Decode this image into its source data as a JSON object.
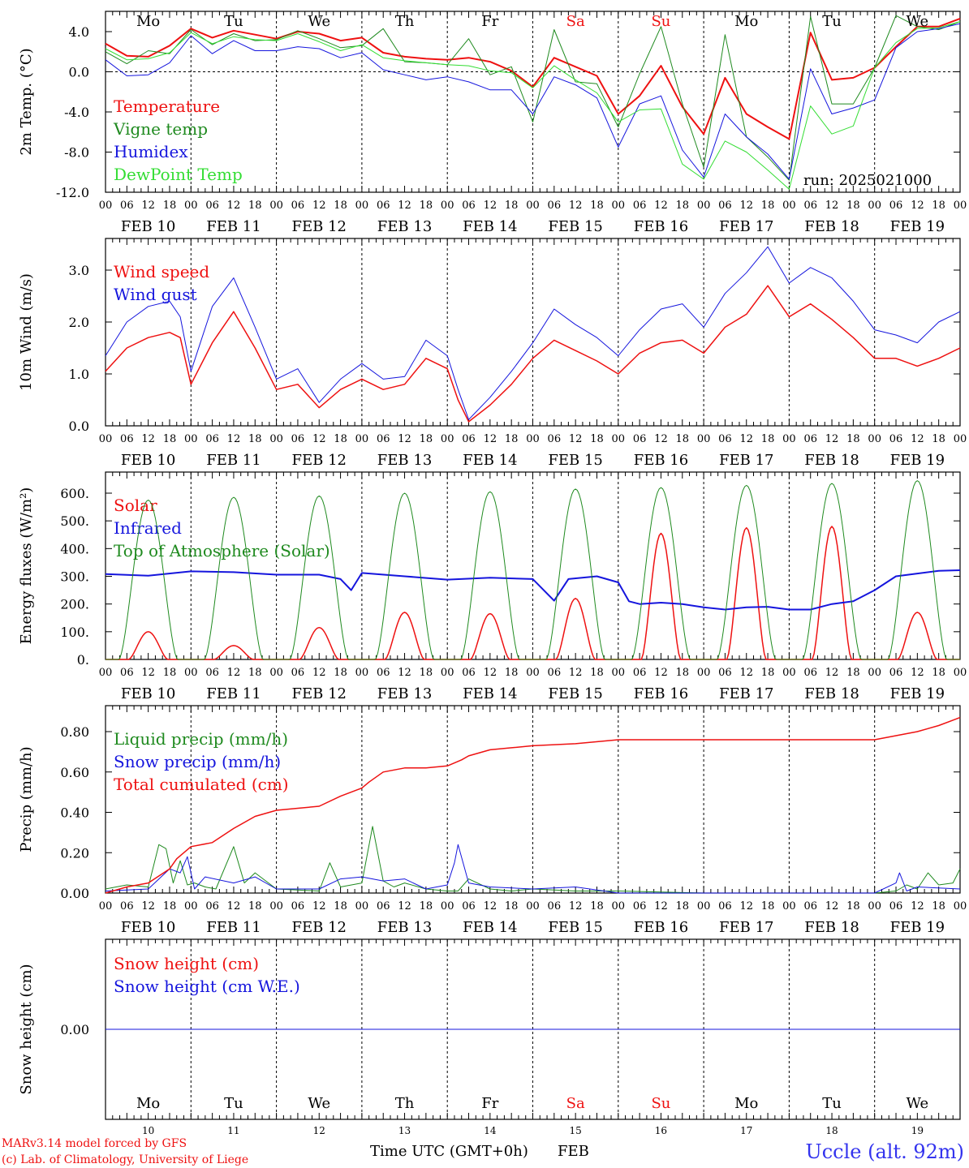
{
  "colors": {
    "red": "#ee1111",
    "dark_green": "#1f8a1f",
    "light_green": "#33dd33",
    "blue": "#1515dd",
    "black": "#000000",
    "station_blue": "#3333ee"
  },
  "days": [
    {
      "abbr": "Mo",
      "color": "black",
      "date": "FEB 10",
      "num": "10"
    },
    {
      "abbr": "Tu",
      "color": "black",
      "date": "FEB 11",
      "num": "11"
    },
    {
      "abbr": "We",
      "color": "black",
      "date": "FEB 12",
      "num": "12"
    },
    {
      "abbr": "Th",
      "color": "black",
      "date": "FEB 13",
      "num": "13"
    },
    {
      "abbr": "Fr",
      "color": "black",
      "date": "FEB 14",
      "num": "14"
    },
    {
      "abbr": "Sa",
      "color": "red",
      "date": "FEB 15",
      "num": "15"
    },
    {
      "abbr": "Su",
      "color": "red",
      "date": "FEB 16",
      "num": "16"
    },
    {
      "abbr": "Mo",
      "color": "black",
      "date": "FEB 17",
      "num": "17"
    },
    {
      "abbr": "Tu",
      "color": "black",
      "date": "FEB 18",
      "num": "18"
    },
    {
      "abbr": "We",
      "color": "black",
      "date": "FEB 19",
      "num": "19"
    }
  ],
  "hour_ticks": [
    "00",
    "06",
    "12",
    "18"
  ],
  "footer": {
    "model": "MARv3.14 model forced by GFS",
    "credit": "(c) Lab. of Climatology, University of Liege",
    "xlabel": "Time UTC (GMT+0h)",
    "month": "FEB",
    "station": "Uccle (alt. 92m)"
  },
  "chart_data": [
    {
      "type": "line",
      "ylabel": "2m Temp. (°C)",
      "ylim": [
        -12,
        6
      ],
      "yticks": [
        4,
        0,
        -4,
        -8,
        -12
      ],
      "ytick_labels": [
        "4.0",
        "0.0",
        "-4.0",
        "-8.0",
        "-12.0"
      ],
      "zero_line": true,
      "annotation": "run: 2025021000",
      "x_unit": "hours since 2025-02-10 00 UTC",
      "series": [
        {
          "name": "Temperature",
          "color": "red",
          "width": 2,
          "x": [
            0,
            6,
            12,
            18,
            24,
            30,
            36,
            42,
            48,
            54,
            60,
            66,
            72,
            78,
            84,
            90,
            96,
            102,
            108,
            114,
            120,
            126,
            132,
            138,
            144,
            150,
            156,
            162,
            168,
            174,
            180,
            186,
            192,
            198,
            204,
            210,
            216,
            222,
            228,
            234,
            240
          ],
          "y": [
            2.8,
            1.6,
            1.5,
            2.6,
            4.3,
            3.4,
            4.1,
            3.7,
            3.3,
            4.0,
            3.8,
            3.1,
            3.4,
            1.9,
            1.5,
            1.3,
            1.2,
            1.4,
            1.0,
            0.1,
            -1.5,
            1.4,
            0.5,
            -0.4,
            -4.2,
            -2.4,
            0.6,
            -3.5,
            -6.2,
            -0.6,
            -4.2,
            -5.5,
            -6.7,
            3.9,
            -0.8,
            -0.6,
            0.4,
            2.5,
            4.5,
            4.5,
            5.3
          ]
        },
        {
          "name": "Vigne temp",
          "color": "dark_green",
          "width": 1,
          "x": [
            0,
            6,
            12,
            18,
            24,
            30,
            36,
            42,
            48,
            54,
            60,
            66,
            72,
            78,
            84,
            90,
            96,
            102,
            108,
            114,
            120,
            126,
            132,
            138,
            144,
            150,
            156,
            162,
            168,
            174,
            180,
            186,
            192,
            198,
            204,
            210,
            216,
            222,
            228,
            234,
            240
          ],
          "y": [
            2.0,
            0.8,
            2.1,
            1.8,
            4.2,
            2.7,
            3.8,
            3.1,
            3.2,
            4.1,
            3.3,
            2.4,
            2.6,
            4.3,
            1.0,
            0.9,
            0.7,
            3.3,
            -0.3,
            0.5,
            -5.0,
            4.2,
            -1.0,
            -1.2,
            -5.5,
            -0.2,
            4.5,
            -3.2,
            -9.5,
            3.7,
            -6.5,
            -8.5,
            -10.8,
            5.5,
            -3.2,
            -3.2,
            0.4,
            5.6,
            4.5,
            4.2,
            5.0
          ]
        },
        {
          "name": "Humidex",
          "color": "blue",
          "width": 1,
          "x": [
            0,
            6,
            12,
            18,
            24,
            30,
            36,
            42,
            48,
            54,
            60,
            66,
            72,
            78,
            84,
            90,
            96,
            102,
            108,
            114,
            120,
            126,
            132,
            138,
            144,
            150,
            156,
            162,
            168,
            174,
            180,
            186,
            192,
            198,
            204,
            210,
            216,
            222,
            228,
            234,
            240
          ],
          "y": [
            1.2,
            -0.4,
            -0.3,
            0.9,
            3.6,
            1.8,
            3.1,
            2.1,
            2.1,
            2.5,
            2.3,
            1.4,
            1.9,
            0.2,
            -0.3,
            -0.8,
            -0.5,
            -1.0,
            -1.8,
            -1.8,
            -4.2,
            -0.5,
            -1.3,
            -2.6,
            -7.5,
            -3.2,
            -2.4,
            -7.8,
            -10.5,
            -4.2,
            -6.5,
            -8.2,
            -10.7,
            0.3,
            -4.2,
            -3.6,
            -2.8,
            2.4,
            4.0,
            4.3,
            4.8
          ]
        },
        {
          "name": "DewPoint Temp",
          "color": "light_green",
          "width": 1,
          "x": [
            0,
            6,
            12,
            18,
            24,
            30,
            36,
            42,
            48,
            54,
            60,
            66,
            72,
            78,
            84,
            90,
            96,
            102,
            108,
            114,
            120,
            126,
            132,
            138,
            144,
            150,
            156,
            162,
            168,
            174,
            180,
            186,
            192,
            198,
            204,
            210,
            216,
            222,
            228,
            234,
            240
          ],
          "y": [
            2.3,
            1.2,
            1.3,
            1.9,
            3.9,
            2.8,
            3.5,
            3.2,
            3.1,
            3.8,
            3.0,
            2.1,
            2.7,
            1.4,
            1.1,
            0.9,
            0.7,
            0.6,
            0.1,
            -0.1,
            -1.6,
            0.6,
            -0.8,
            -2.1,
            -5.0,
            -3.8,
            -3.7,
            -9.2,
            -10.7,
            -6.9,
            -8.0,
            -9.8,
            -11.7,
            -3.4,
            -6.2,
            -5.4,
            0.4,
            2.9,
            4.3,
            4.4,
            5.0
          ]
        }
      ]
    },
    {
      "type": "line",
      "ylabel": "10m Wind (m/s)",
      "ylim": [
        0,
        3.5
      ],
      "yticks": [
        0,
        1,
        2,
        3
      ],
      "ytick_labels": [
        "0.0",
        "1.0",
        "2.0",
        "3.0"
      ],
      "x_unit": "hours since 2025-02-10 00 UTC",
      "series": [
        {
          "name": "Wind speed",
          "color": "red",
          "width": 1.5,
          "x": [
            0,
            6,
            12,
            18,
            21,
            24,
            30,
            36,
            42,
            48,
            54,
            60,
            66,
            72,
            78,
            84,
            90,
            96,
            99,
            102,
            108,
            114,
            120,
            126,
            132,
            138,
            144,
            150,
            156,
            162,
            168,
            174,
            180,
            186,
            192,
            198,
            204,
            210,
            216,
            222,
            228,
            234,
            240
          ],
          "y": [
            1.05,
            1.5,
            1.7,
            1.8,
            1.7,
            0.8,
            1.6,
            2.2,
            1.5,
            0.7,
            0.8,
            0.35,
            0.7,
            0.9,
            0.7,
            0.8,
            1.3,
            1.1,
            0.5,
            0.08,
            0.4,
            0.8,
            1.3,
            1.65,
            1.45,
            1.25,
            1.0,
            1.4,
            1.6,
            1.65,
            1.4,
            1.9,
            2.15,
            2.7,
            2.1,
            2.35,
            2.05,
            1.7,
            1.3,
            1.3,
            1.15,
            1.3,
            1.5
          ]
        },
        {
          "name": "Wind gust",
          "color": "blue",
          "width": 1,
          "x": [
            0,
            6,
            12,
            18,
            21,
            24,
            30,
            36,
            42,
            48,
            54,
            60,
            66,
            72,
            78,
            84,
            90,
            96,
            99,
            102,
            108,
            114,
            120,
            126,
            132,
            138,
            144,
            150,
            156,
            162,
            168,
            174,
            180,
            186,
            192,
            198,
            204,
            210,
            216,
            222,
            228,
            234,
            240
          ],
          "y": [
            1.35,
            2.0,
            2.3,
            2.4,
            2.1,
            1.05,
            2.3,
            2.85,
            1.9,
            0.9,
            1.1,
            0.45,
            0.9,
            1.2,
            0.9,
            0.95,
            1.65,
            1.35,
            0.7,
            0.12,
            0.55,
            1.05,
            1.6,
            2.25,
            1.95,
            1.7,
            1.35,
            1.85,
            2.25,
            2.35,
            1.9,
            2.55,
            2.95,
            3.45,
            2.75,
            3.05,
            2.85,
            2.4,
            1.85,
            1.75,
            1.6,
            2.0,
            2.2
          ]
        }
      ]
    },
    {
      "type": "line",
      "ylabel": "Energy fluxes (W/m²)",
      "ylim": [
        0,
        650
      ],
      "yticks": [
        0,
        100,
        200,
        300,
        400,
        500,
        600
      ],
      "ytick_labels": [
        "0.",
        "100.",
        "200.",
        "300.",
        "400.",
        "500.",
        "600."
      ],
      "x_unit": "hours since 2025-02-10 00 UTC",
      "series": [
        {
          "name": "Solar",
          "color": "red",
          "width": 1.5,
          "peaks": [
            100,
            50,
            115,
            170,
            165,
            220,
            455,
            475,
            480,
            170
          ]
        },
        {
          "name": "Infrared",
          "color": "blue",
          "width": 2,
          "x": [
            0,
            12,
            24,
            36,
            48,
            60,
            66,
            69,
            72,
            84,
            96,
            108,
            120,
            126,
            130,
            138,
            144,
            147,
            150,
            156,
            162,
            168,
            174,
            180,
            186,
            192,
            198,
            204,
            210,
            216,
            222,
            228,
            234,
            240
          ],
          "y": [
            308,
            302,
            318,
            315,
            306,
            306,
            290,
            250,
            312,
            300,
            288,
            295,
            290,
            212,
            290,
            300,
            278,
            210,
            200,
            205,
            200,
            188,
            180,
            188,
            190,
            180,
            180,
            200,
            210,
            250,
            300,
            310,
            320,
            322
          ]
        },
        {
          "name": "Top of Atmosphere (Solar)",
          "color": "dark_green",
          "width": 1,
          "peaks": [
            575,
            585,
            590,
            600,
            605,
            615,
            620,
            628,
            635,
            645
          ]
        }
      ]
    },
    {
      "type": "line",
      "ylabel": "Precip (mm/h)",
      "ylim": [
        0,
        0.9
      ],
      "yticks": [
        0,
        0.2,
        0.4,
        0.6,
        0.8
      ],
      "ytick_labels": [
        "0.00",
        "0.20",
        "0.40",
        "0.60",
        "0.80"
      ],
      "x_unit": "hours since 2025-02-10 00 UTC",
      "series": [
        {
          "name": "Liquid precip (mm/h)",
          "color": "dark_green",
          "width": 1,
          "x": [
            0,
            6,
            12,
            15,
            17,
            19,
            21,
            23,
            25,
            28,
            31,
            36,
            39,
            42,
            48,
            60,
            63,
            66,
            72,
            75,
            78,
            81,
            84,
            90,
            96,
            99,
            102,
            108,
            114,
            120,
            132,
            144,
            168,
            216,
            222,
            225,
            228,
            231,
            234,
            238,
            240
          ],
          "y": [
            0.02,
            0.04,
            0.03,
            0.24,
            0.22,
            0.05,
            0.16,
            0.04,
            0.05,
            0.03,
            0.02,
            0.23,
            0.05,
            0.1,
            0.02,
            0.01,
            0.15,
            0.03,
            0.05,
            0.33,
            0.06,
            0.03,
            0.05,
            0.02,
            0.01,
            0.01,
            0.07,
            0.02,
            0.01,
            0.02,
            0.01,
            0.01,
            0.0,
            0.0,
            0.01,
            0.04,
            0.02,
            0.1,
            0.04,
            0.05,
            0.12
          ]
        },
        {
          "name": "Snow precip (mm/h)",
          "color": "blue",
          "width": 1,
          "x": [
            0,
            12,
            18,
            21,
            23,
            25,
            28,
            36,
            42,
            48,
            60,
            66,
            72,
            78,
            84,
            90,
            96,
            98,
            99,
            102,
            108,
            120,
            132,
            144,
            168,
            216,
            222,
            223,
            225,
            228,
            240
          ],
          "y": [
            0.01,
            0.02,
            0.12,
            0.1,
            0.18,
            0.02,
            0.08,
            0.05,
            0.08,
            0.02,
            0.02,
            0.07,
            0.08,
            0.06,
            0.07,
            0.02,
            0.04,
            0.15,
            0.24,
            0.05,
            0.03,
            0.02,
            0.03,
            0.0,
            0.0,
            0.0,
            0.05,
            0.1,
            0.01,
            0.03,
            0.02
          ]
        },
        {
          "name": "Total cumulated (cm)",
          "color": "red",
          "width": 1.5,
          "x": [
            0,
            6,
            12,
            18,
            20,
            24,
            30,
            36,
            42,
            48,
            54,
            60,
            66,
            72,
            74,
            78,
            84,
            90,
            96,
            100,
            102,
            108,
            114,
            120,
            132,
            144,
            156,
            168,
            180,
            192,
            204,
            216,
            222,
            228,
            234,
            240
          ],
          "y": [
            0.0,
            0.03,
            0.05,
            0.12,
            0.17,
            0.23,
            0.25,
            0.32,
            0.38,
            0.41,
            0.42,
            0.43,
            0.48,
            0.52,
            0.55,
            0.6,
            0.62,
            0.62,
            0.63,
            0.66,
            0.68,
            0.71,
            0.72,
            0.73,
            0.74,
            0.76,
            0.76,
            0.76,
            0.76,
            0.76,
            0.76,
            0.76,
            0.78,
            0.8,
            0.83,
            0.87
          ]
        }
      ]
    },
    {
      "type": "line",
      "ylabel": "Snow height (cm)",
      "ylim": [
        -1,
        1
      ],
      "yticks": [
        0
      ],
      "ytick_labels": [
        "0.00"
      ],
      "x_unit": "hours since 2025-02-10 00 UTC",
      "series": [
        {
          "name": "Snow height (cm)",
          "color": "red",
          "width": 1,
          "x": [
            0,
            240
          ],
          "y": [
            0,
            0
          ]
        },
        {
          "name": "Snow height (cm W.E.)",
          "color": "blue",
          "width": 1,
          "x": [
            0,
            240
          ],
          "y": [
            0,
            0
          ]
        }
      ]
    }
  ]
}
